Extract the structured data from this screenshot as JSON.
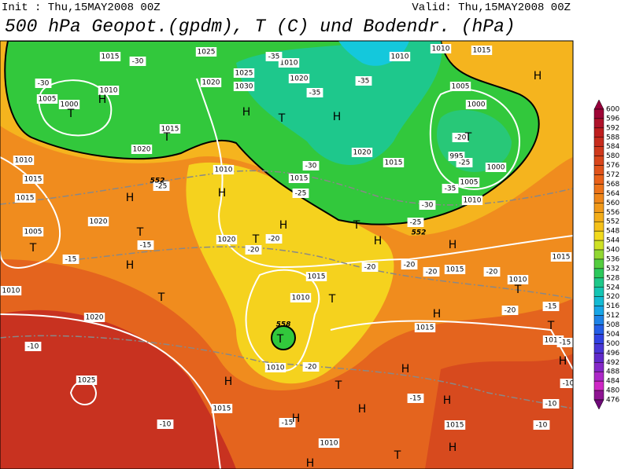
{
  "header": {
    "init": "Init : Thu,15MAY2008 00Z",
    "valid": "Valid: Thu,15MAY2008 00Z",
    "title": "500 hPa Geopot.(gpdm), T (C) und Bodendr. (hPa)"
  },
  "colorbar": {
    "levels": [
      600,
      596,
      592,
      588,
      584,
      580,
      576,
      572,
      568,
      564,
      560,
      556,
      552,
      548,
      544,
      540,
      536,
      532,
      528,
      524,
      520,
      516,
      512,
      508,
      504,
      500,
      496,
      492,
      488,
      484,
      480,
      476
    ]
  },
  "map": {
    "pressure_labels": [
      "1015",
      "1005",
      "1000",
      "1010",
      "1025",
      "1010",
      "1025",
      "1030",
      "1020",
      "1020",
      "1010",
      "1010",
      "1015",
      "1005",
      "1000",
      "995",
      "1000",
      "1005",
      "1010",
      "1015",
      "1020",
      "1010",
      "1015",
      "1015",
      "1005",
      "1020",
      "1010",
      "1020",
      "1015",
      "1015",
      "1020",
      "1015",
      "1010",
      "1010",
      "1020",
      "1015",
      "1015",
      "1010",
      "1010",
      "1025",
      "1010",
      "1015",
      "1015",
      "1015",
      "1010"
    ],
    "temperature_labels": [
      "-30",
      "-30",
      "-35",
      "-35",
      "-35",
      "-30",
      "-25",
      "-20",
      "-25",
      "-35",
      "-30",
      "-25",
      "-25",
      "-15",
      "-15",
      "-20",
      "-20",
      "-20",
      "-20",
      "-20",
      "-20",
      "-20",
      "-15",
      "-15",
      "-20",
      "-10",
      "-10",
      "-15",
      "-15",
      "-10",
      "-10",
      "-10"
    ],
    "markers": [
      "H",
      "H",
      "H",
      "H",
      "H",
      "H",
      "H",
      "H",
      "H",
      "H",
      "H",
      "H",
      "H",
      "H",
      "H",
      "H",
      "H",
      "H",
      "H",
      "T",
      "T",
      "T",
      "T",
      "T",
      "T",
      "T",
      "T",
      "T",
      "T",
      "T",
      "T",
      "T",
      "T",
      "T"
    ],
    "contour_labels": [
      "552",
      "552",
      "558"
    ]
  }
}
